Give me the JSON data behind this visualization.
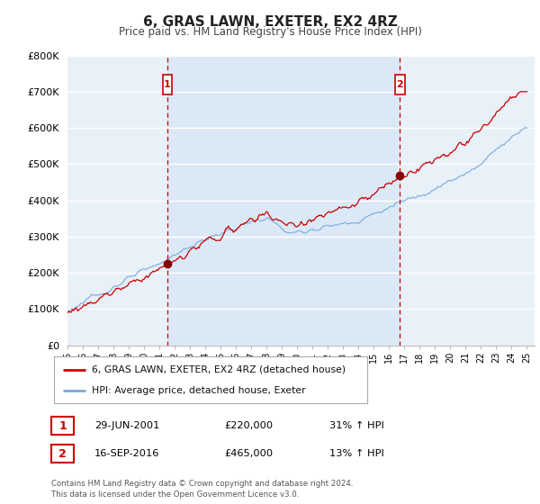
{
  "title": "6, GRAS LAWN, EXETER, EX2 4RZ",
  "subtitle": "Price paid vs. HM Land Registry's House Price Index (HPI)",
  "ylim": [
    0,
    800000
  ],
  "xlim_start": 1995.0,
  "xlim_end": 2025.5,
  "yticks": [
    0,
    100000,
    200000,
    300000,
    400000,
    500000,
    600000,
    700000,
    800000
  ],
  "ytick_labels": [
    "£0",
    "£100K",
    "£200K",
    "£300K",
    "£400K",
    "£500K",
    "£600K",
    "£700K",
    "£800K"
  ],
  "sale1_date_num": 2001.5,
  "sale1_price": 220000,
  "sale1_label": "29-JUN-2001",
  "sale1_price_label": "£220,000",
  "sale1_hpi_label": "31% ↑ HPI",
  "sale2_date_num": 2016.71,
  "sale2_price": 465000,
  "sale2_label": "16-SEP-2016",
  "sale2_price_label": "£465,000",
  "sale2_hpi_label": "13% ↑ HPI",
  "red_line_color": "#cc0000",
  "blue_line_color": "#7aaadd",
  "blue_fill_color": "#ccddf5",
  "dashed_line_color": "#cc0000",
  "background_color": "#e8f0f8",
  "grid_color": "#ffffff",
  "legend1": "6, GRAS LAWN, EXETER, EX2 4RZ (detached house)",
  "legend2": "HPI: Average price, detached house, Exeter",
  "footer": "Contains HM Land Registry data © Crown copyright and database right 2024.\nThis data is licensed under the Open Government Licence v3.0."
}
